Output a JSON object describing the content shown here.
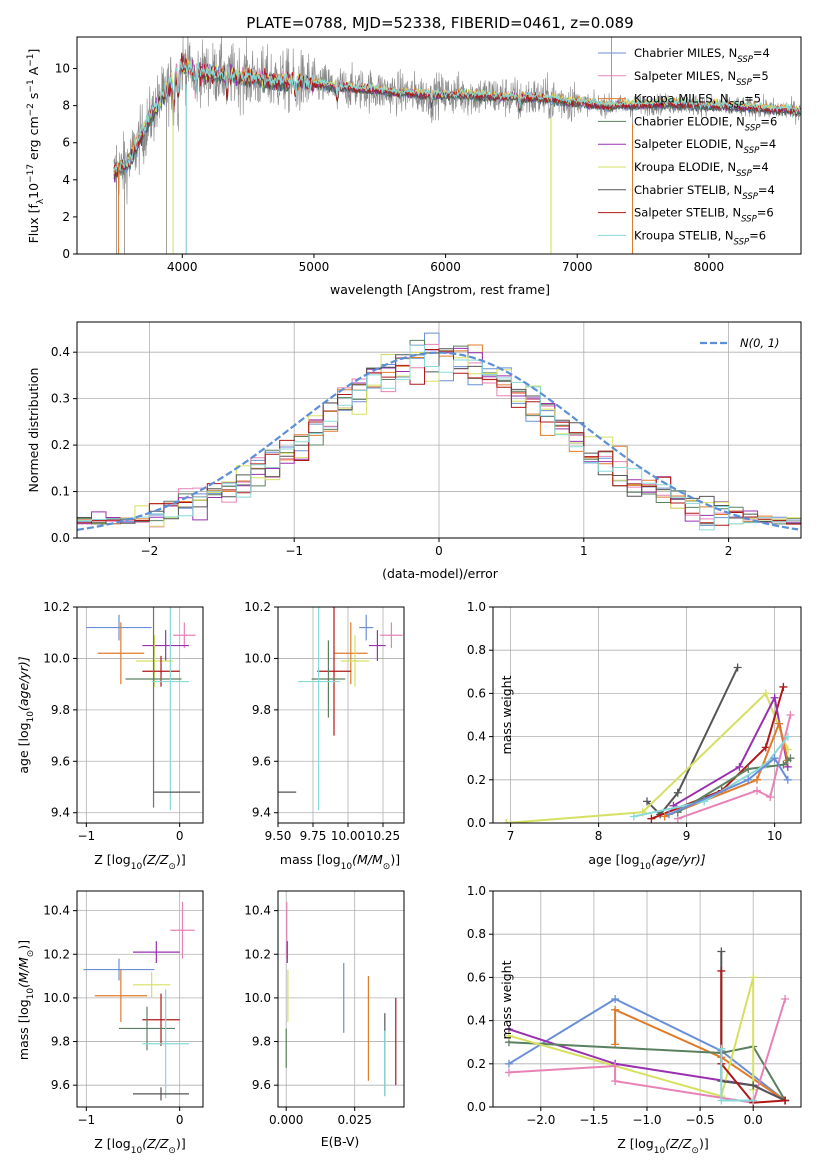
{
  "colors": {
    "Chabrier MILES": "#6a8fd6",
    "Salpeter MILES": "#e882b6",
    "Kroupa MILES": "#e07b2a",
    "Chabrier ELODIE": "#5a8060",
    "Salpeter ELODIE": "#9a30b0",
    "Kroupa ELODIE": "#d6e060",
    "Chabrier STELIB": "#555555",
    "Salpeter STELIB": "#b01818",
    "Kroupa STELIB": "#88dada",
    "data": "#888888",
    "normal": "#5b8fd6"
  },
  "chart_data": [
    {
      "id": "spectrum",
      "type": "line",
      "title": "PLATE=0788, MJD=52338, FIBERID=0461, z=0.089",
      "xlabel": "wavelength [Angstrom, rest frame]",
      "ylabel_main": "Flux [f",
      "ylabel_sub": "λ",
      "ylabel_rest": "10",
      "ylabel_e1": "−17",
      "ylabel_mid": " erg cm",
      "ylabel_e2": "−2",
      "ylabel_mid2": " s",
      "ylabel_e3": "−1",
      "ylabel_end": " A",
      "ylabel_e4": "−1",
      "ylabel_close": "]",
      "xlim": [
        3200,
        8700
      ],
      "ylim": [
        0,
        11.7
      ],
      "xticks": [
        4000,
        5000,
        6000,
        7000,
        8000
      ],
      "yticks": [
        0,
        2,
        4,
        6,
        8,
        10
      ],
      "legend_position": "top-right",
      "grid": false,
      "legend": [
        {
          "model": "Chabrier MILES",
          "label": "Chabrier MILES, N",
          "sub": "SSP",
          "val": "=4"
        },
        {
          "model": "Salpeter MILES",
          "label": "Salpeter MILES, N",
          "sub": "SSP",
          "val": "=5"
        },
        {
          "model": "Kroupa MILES",
          "label": "Kroupa MILES, N",
          "sub": "SSP",
          "val": "=5"
        },
        {
          "model": "Chabrier ELODIE",
          "label": "Chabrier ELODIE, N",
          "sub": "SSP",
          "val": "=6"
        },
        {
          "model": "Salpeter ELODIE",
          "label": "Salpeter ELODIE, N",
          "sub": "SSP",
          "val": "=4"
        },
        {
          "model": "Kroupa ELODIE",
          "label": "Kroupa ELODIE, N",
          "sub": "SSP",
          "val": "=4"
        },
        {
          "model": "Chabrier STELIB",
          "label": "Chabrier STELIB, N",
          "sub": "SSP",
          "val": "=4"
        },
        {
          "model": "Salpeter STELIB",
          "label": "Salpeter STELIB, N",
          "sub": "SSP",
          "val": "=6"
        },
        {
          "model": "Kroupa STELIB",
          "label": "Kroupa STELIB, N",
          "sub": "SSP",
          "val": "=6"
        }
      ],
      "continuum_x": [
        3480,
        3600,
        3800,
        3900,
        4000,
        4100,
        4300,
        4500,
        4800,
        5000,
        5200,
        5500,
        5800,
        6100,
        6400,
        6700,
        7000,
        7200,
        7400,
        7700,
        8000,
        8300,
        8700
      ],
      "continuum_y": [
        5.8,
        6.2,
        8.5,
        9.3,
        10.3,
        9.8,
        9.7,
        9.5,
        9.3,
        9.2,
        9.0,
        8.8,
        8.6,
        8.6,
        8.5,
        8.4,
        8.2,
        8.0,
        8.0,
        8.1,
        8.0,
        7.9,
        7.7
      ]
    },
    {
      "id": "residuals",
      "type": "bar",
      "xlabel": "(data-model)/error",
      "ylabel": "Normed distribution",
      "xlim": [
        -2.5,
        2.5
      ],
      "ylim": [
        0,
        0.465
      ],
      "xticks": [
        -2,
        -1,
        0,
        1,
        2
      ],
      "yticks": [
        0.0,
        0.1,
        0.2,
        0.3,
        0.4
      ],
      "grid": true,
      "legend_position": "top-right",
      "normal_label": "N(0, 1)",
      "bin_width": 0.1
    },
    {
      "id": "age-vs-Z",
      "type": "scatter",
      "xlabel_a": "Z [log",
      "xlabel_sub": "10",
      "xlabel_b": "(Z/Z",
      "xlabel_sun": "⊙",
      "xlabel_c": ")]",
      "ylabel_a": "age  [log",
      "ylabel_sub": "10",
      "ylabel_b": "(age/yr)]",
      "xlim": [
        -1.1,
        0.25
      ],
      "ylim": [
        9.36,
        10.2
      ],
      "xticks": [
        -1,
        0
      ],
      "yticks": [
        9.4,
        9.6,
        9.8,
        10.0,
        10.2
      ],
      "grid": true,
      "points": [
        {
          "model": "Chabrier MILES",
          "x": -0.65,
          "xerr": 0.35,
          "y": 10.12,
          "yerr": 0.05
        },
        {
          "model": "Salpeter MILES",
          "x": 0.05,
          "xerr": 0.12,
          "y": 10.09,
          "yerr": 0.05
        },
        {
          "model": "Kroupa MILES",
          "x": -0.63,
          "xerr": 0.25,
          "y": 10.02,
          "yerr": 0.12
        },
        {
          "model": "Salpeter ELODIE",
          "x": -0.15,
          "xerr": 0.25,
          "y": 10.05,
          "yerr": 0.06
        },
        {
          "model": "Kroupa ELODIE",
          "x": -0.27,
          "xerr": 0.2,
          "y": 9.99,
          "yerr": 0.1
        },
        {
          "model": "Salpeter STELIB",
          "x": -0.2,
          "xerr": 0.2,
          "y": 9.95,
          "yerr": 0.06
        },
        {
          "model": "Chabrier ELODIE",
          "x": -0.28,
          "xerr": 0.3,
          "y": 9.92,
          "yerr": 0.5
        },
        {
          "model": "Kroupa STELIB",
          "x": -0.1,
          "xerr": 0.2,
          "y": 9.91,
          "yerr": 0.5
        },
        {
          "model": "Chabrier STELIB",
          "x": -0.28,
          "xerr": 0.0,
          "y": 9.48,
          "yerr": 0.0,
          "xhi": 0.22
        }
      ]
    },
    {
      "id": "age-vs-mass",
      "type": "scatter",
      "xlabel_a": "mass [log",
      "xlabel_sub": "10",
      "xlabel_b": "(M/M",
      "xlabel_sun": "⊙",
      "xlabel_c": ")]",
      "xlim": [
        9.5,
        10.4
      ],
      "ylim": [
        9.36,
        10.2
      ],
      "xticks": [
        9.5,
        9.75,
        10.0,
        10.25
      ],
      "xticklabels": [
        "9.50",
        "9.75",
        "10.00",
        "10.25"
      ],
      "yticks": [
        9.4,
        9.6,
        9.8,
        10.0,
        10.2
      ],
      "grid": true,
      "points": [
        {
          "model": "Chabrier MILES",
          "x": 10.13,
          "xerr": 0.05,
          "y": 10.12,
          "yerr": 0.05
        },
        {
          "model": "Salpeter MILES",
          "x": 10.31,
          "xerr": 0.08,
          "y": 10.09,
          "yerr": 0.05
        },
        {
          "model": "Kroupa MILES",
          "x": 10.02,
          "xerr": 0.12,
          "y": 10.02,
          "yerr": 0.12
        },
        {
          "model": "Salpeter ELODIE",
          "x": 10.21,
          "xerr": 0.06,
          "y": 10.05,
          "yerr": 0.06
        },
        {
          "model": "Kroupa ELODIE",
          "x": 10.05,
          "xerr": 0.1,
          "y": 9.99,
          "yerr": 0.1
        },
        {
          "model": "Salpeter STELIB",
          "x": 9.9,
          "xerr": 0.12,
          "y": 9.95,
          "yerr": 0.25
        },
        {
          "model": "Chabrier ELODIE",
          "x": 9.86,
          "xerr": 0.12,
          "y": 9.92,
          "yerr": 0.15
        },
        {
          "model": "Kroupa STELIB",
          "x": 9.79,
          "xerr": 0.15,
          "y": 9.91,
          "yerr": 0.5
        },
        {
          "model": "Chabrier STELIB",
          "x": 9.56,
          "xerr": 0.07,
          "y": 9.48,
          "yerr": 0.0
        }
      ]
    },
    {
      "id": "weight-vs-age",
      "type": "line",
      "xlabel_a": "age  [log",
      "xlabel_sub": "10",
      "xlabel_b": "(age/yr)]",
      "ylabel": "mass weight",
      "xlim": [
        6.8,
        10.3
      ],
      "ylim": [
        0,
        1
      ],
      "xticks": [
        7,
        8,
        9,
        10
      ],
      "yticks": [
        0.0,
        0.2,
        0.4,
        0.6,
        0.8,
        1.0
      ],
      "grid": true,
      "series": [
        {
          "model": "Chabrier STELIB",
          "x": [
            8.55,
            8.7,
            8.9,
            9.58
          ],
          "y": [
            0.1,
            0.04,
            0.14,
            0.72
          ]
        },
        {
          "model": "Kroupa ELODIE",
          "x": [
            6.95,
            8.5,
            9.9,
            10.15
          ],
          "y": [
            0.0,
            0.05,
            0.6,
            0.34
          ]
        },
        {
          "model": "Salpeter STELIB",
          "x": [
            8.6,
            9.4,
            9.9,
            10.1
          ],
          "y": [
            0.02,
            0.15,
            0.35,
            0.63
          ]
        },
        {
          "model": "Salpeter ELODIE",
          "x": [
            8.85,
            9.6,
            10.0,
            10.15
          ],
          "y": [
            0.08,
            0.26,
            0.58,
            0.26
          ]
        },
        {
          "model": "Kroupa MILES",
          "x": [
            8.75,
            9.8,
            10.05,
            10.15
          ],
          "y": [
            0.03,
            0.2,
            0.46,
            0.29
          ]
        },
        {
          "model": "Salpeter MILES",
          "x": [
            8.9,
            9.8,
            9.95,
            10.18
          ],
          "y": [
            0.02,
            0.15,
            0.12,
            0.5
          ]
        },
        {
          "model": "Chabrier ELODIE",
          "x": [
            8.9,
            9.7,
            10.1,
            10.18
          ],
          "y": [
            0.05,
            0.25,
            0.27,
            0.3
          ]
        },
        {
          "model": "Kroupa STELIB",
          "x": [
            8.4,
            9.2,
            9.9,
            10.15
          ],
          "y": [
            0.03,
            0.1,
            0.27,
            0.4
          ]
        },
        {
          "model": "Chabrier MILES",
          "x": [
            8.8,
            9.7,
            10.0,
            10.15
          ],
          "y": [
            0.04,
            0.2,
            0.3,
            0.2
          ]
        }
      ]
    },
    {
      "id": "mass-vs-Z",
      "type": "scatter",
      "xlabel_a": "Z [log",
      "xlabel_sub": "10",
      "xlabel_b": "(Z/Z",
      "xlabel_sun": "⊙",
      "xlabel_c": ")]",
      "ylabel_a": "mass [log",
      "ylabel_sub": "10",
      "ylabel_b": "(M/M",
      "ylabel_sun": "⊙",
      "ylabel_c": ")]",
      "xlim": [
        -1.1,
        0.25
      ],
      "ylim": [
        9.5,
        10.49
      ],
      "xticks": [
        -1,
        0
      ],
      "yticks": [
        9.6,
        9.8,
        10.0,
        10.2,
        10.4
      ],
      "grid": true,
      "points": [
        {
          "model": "Salpeter MILES",
          "x": 0.03,
          "xerr": 0.13,
          "y": 10.31,
          "yerr": 0.13
        },
        {
          "model": "Salpeter ELODIE",
          "x": -0.25,
          "xerr": 0.25,
          "y": 10.21,
          "yerr": 0.05
        },
        {
          "model": "Chabrier MILES",
          "x": -0.65,
          "xerr": 0.38,
          "y": 10.13,
          "yerr": 0.05
        },
        {
          "model": "Kroupa ELODIE",
          "x": -0.3,
          "xerr": 0.2,
          "y": 10.06,
          "yerr": 0.06
        },
        {
          "model": "Kroupa MILES",
          "x": -0.63,
          "xerr": 0.28,
          "y": 10.01,
          "yerr": 0.12
        },
        {
          "model": "Salpeter STELIB",
          "x": -0.2,
          "xerr": 0.2,
          "y": 9.9,
          "yerr": 0.12
        },
        {
          "model": "Chabrier ELODIE",
          "x": -0.35,
          "xerr": 0.3,
          "y": 9.86,
          "yerr": 0.1
        },
        {
          "model": "Kroupa STELIB",
          "x": -0.15,
          "xerr": 0.25,
          "y": 9.79,
          "yerr": 0.25
        },
        {
          "model": "Chabrier STELIB",
          "x": -0.2,
          "xerr": 0.3,
          "y": 9.56,
          "yerr": 0.03
        }
      ]
    },
    {
      "id": "mass-vs-EBV",
      "type": "scatter",
      "xlabel": "E(B-V)",
      "xlim": [
        -0.003,
        0.043
      ],
      "ylim": [
        9.5,
        10.49
      ],
      "xticks": [
        0.0,
        0.025
      ],
      "xticklabels": [
        "0.000",
        "0.025"
      ],
      "yticks": [
        9.6,
        9.8,
        10.0,
        10.2,
        10.4
      ],
      "grid": true,
      "points": [
        {
          "model": "Salpeter MILES",
          "x": 0.0002,
          "xerr": 0,
          "y": 10.31,
          "yerr": 0.13
        },
        {
          "model": "Salpeter ELODIE",
          "x": 0.0004,
          "xerr": 0,
          "y": 10.21,
          "yerr": 0.05
        },
        {
          "model": "Kroupa ELODIE",
          "x": 0.0006,
          "xerr": 0,
          "y": 10.01,
          "yerr": 0.12
        },
        {
          "model": "Chabrier ELODIE",
          "x": 0.0,
          "xerr": 0,
          "y": 9.77,
          "yerr": 0.09
        },
        {
          "model": "Chabrier MILES",
          "x": 0.021,
          "xerr": 0,
          "y": 10.0,
          "yerr": 0.16
        },
        {
          "model": "Kroupa MILES",
          "x": 0.03,
          "xerr": 0,
          "y": 9.86,
          "yerr": 0.24
        },
        {
          "model": "Chabrier STELIB",
          "x": 0.036,
          "xerr": 0,
          "y": 9.74,
          "yerr": 0.19
        },
        {
          "model": "Kroupa STELIB",
          "x": 0.036,
          "xerr": 0,
          "y": 9.7,
          "yerr": 0.15
        },
        {
          "model": "Salpeter STELIB",
          "x": 0.04,
          "xerr": 0,
          "y": 9.8,
          "yerr": 0.2
        }
      ]
    },
    {
      "id": "weight-vs-Z",
      "type": "line",
      "xlabel_a": "Z [log",
      "xlabel_sub": "10",
      "xlabel_b": "(Z/Z",
      "xlabel_sun": "⊙",
      "xlabel_c": ")]",
      "ylabel": "mass weight",
      "xlim": [
        -2.45,
        0.45
      ],
      "ylim": [
        0,
        1
      ],
      "xticks": [
        -2.0,
        -1.5,
        -1.0,
        -0.5,
        0.0
      ],
      "xticklabels": [
        "−2.0",
        "−1.5",
        "−1.0",
        "−0.5",
        "0.0"
      ],
      "yticks": [
        0.0,
        0.2,
        0.4,
        0.6,
        0.8,
        1.0
      ],
      "grid": true,
      "series": [
        {
          "model": "Chabrier MILES",
          "x": [
            -2.3,
            -1.3,
            -0.3,
            0.3
          ],
          "y": [
            0.2,
            0.5,
            0.26,
            0.03
          ]
        },
        {
          "model": "Kroupa MILES",
          "x": [
            -1.3,
            -1.3,
            -0.3,
            0.3
          ],
          "y": [
            0.29,
            0.45,
            0.23,
            0.03
          ]
        },
        {
          "model": "Salpeter ELODIE",
          "x": [
            -2.3,
            -1.3,
            0.0,
            0.3
          ],
          "y": [
            0.36,
            0.2,
            0.1,
            0.03
          ]
        },
        {
          "model": "Chabrier ELODIE",
          "x": [
            -2.3,
            -0.3,
            0.0,
            0.3
          ],
          "y": [
            0.3,
            0.25,
            0.28,
            0.03
          ]
        },
        {
          "model": "Kroupa ELODIE",
          "x": [
            -2.3,
            -0.3,
            0.0,
            0.0
          ],
          "y": [
            0.33,
            0.05,
            0.6,
            0.08
          ]
        },
        {
          "model": "Salpeter MILES",
          "x": [
            -2.3,
            -1.3,
            -1.3,
            0.0,
            0.3
          ],
          "y": [
            0.16,
            0.19,
            0.12,
            0.02,
            0.5
          ]
        },
        {
          "model": "Chabrier STELIB",
          "x": [
            -0.3,
            -0.3,
            0.0,
            0.3
          ],
          "y": [
            0.72,
            0.12,
            0.1,
            0.03
          ]
        },
        {
          "model": "Salpeter STELIB",
          "x": [
            -0.3,
            -0.3,
            0.0,
            0.3
          ],
          "y": [
            0.63,
            0.2,
            0.02,
            0.03
          ]
        },
        {
          "model": "Kroupa STELIB",
          "x": [
            -0.3,
            -0.3,
            0.0
          ],
          "y": [
            0.27,
            0.03,
            0.03
          ]
        }
      ]
    }
  ]
}
